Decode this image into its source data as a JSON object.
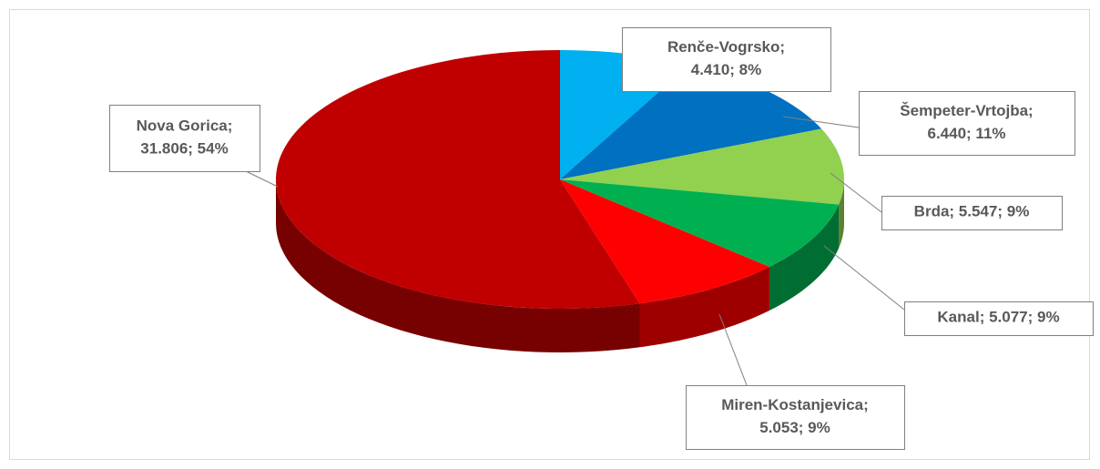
{
  "chart_data": {
    "type": "pie",
    "categories": [
      "Renče-Vogrsko",
      "Šempeter-Vrtojba",
      "Brda",
      "Kanal",
      "Miren-Kostanjevica",
      "Nova Gorica"
    ],
    "values": [
      4410,
      6440,
      5547,
      5077,
      5053,
      31806
    ],
    "value_labels": [
      "4.410",
      "6.440",
      "5.547",
      "5.077",
      "5.053",
      "31.806"
    ],
    "percentages": [
      8,
      11,
      9,
      9,
      9,
      54
    ],
    "percentage_labels": [
      "8%",
      "11%",
      "9%",
      "9%",
      "9%",
      "54%"
    ],
    "label_separator": "; ",
    "colors": [
      "#00b0f0",
      "#0070c0",
      "#92d050",
      "#00b050",
      "#ff0000",
      "#c00000"
    ]
  }
}
